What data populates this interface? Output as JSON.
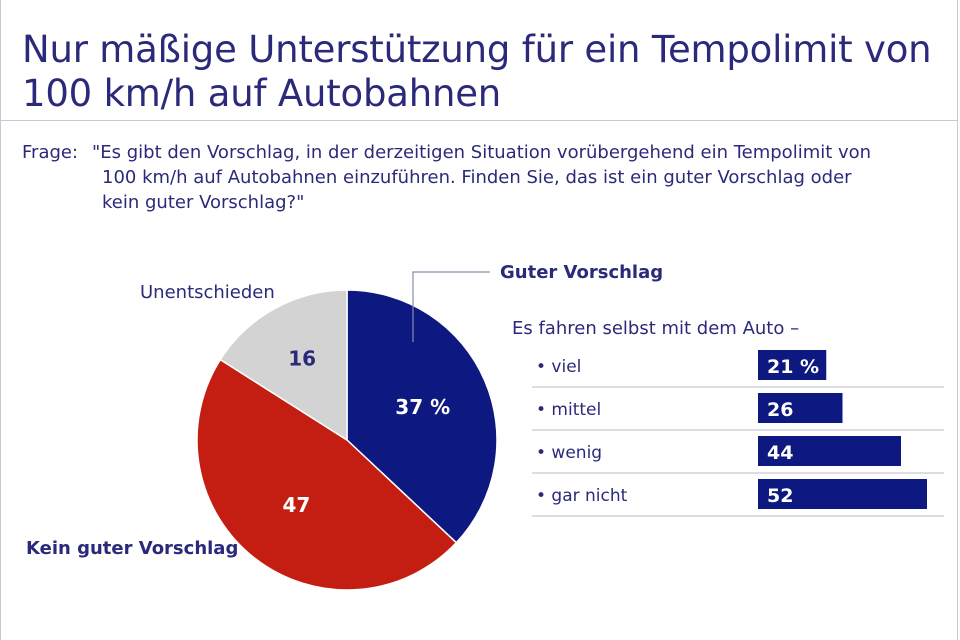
{
  "title": "Nur mäßige Unterstützung für ein Tempolimit von 100 km/h auf Autobahnen",
  "question": {
    "label": "Frage:",
    "line1": "\"Es gibt den Vorschlag, in der derzeitigen Situation vorübergehend ein Tempolimit von",
    "line2": "100 km/h auf Autobahnen einzuführen. Finden Sie, das ist ein guter Vorschlag oder",
    "line3": "kein guter Vorschlag?\""
  },
  "colors": {
    "title": "#2b2a7a",
    "good": "#0d1880",
    "bad": "#c41e13",
    "undecided": "#d3d3d3",
    "bars": "#0d1880"
  },
  "chart_data": [
    {
      "type": "pie",
      "slices": [
        {
          "label": "Guter Vorschlag",
          "value": 37,
          "display": "37 %"
        },
        {
          "label": "Kein guter Vorschlag",
          "value": 47,
          "display": "47"
        },
        {
          "label": "Unentschieden",
          "value": 16,
          "display": "16"
        }
      ]
    },
    {
      "type": "bar",
      "title": "Es fahren selbst mit dem Auto –",
      "categories": [
        "viel",
        "mittel",
        "wenig",
        "gar nicht"
      ],
      "values": [
        21,
        26,
        44,
        52
      ],
      "value_labels": [
        "21 %",
        "26",
        "44",
        "52"
      ]
    }
  ]
}
